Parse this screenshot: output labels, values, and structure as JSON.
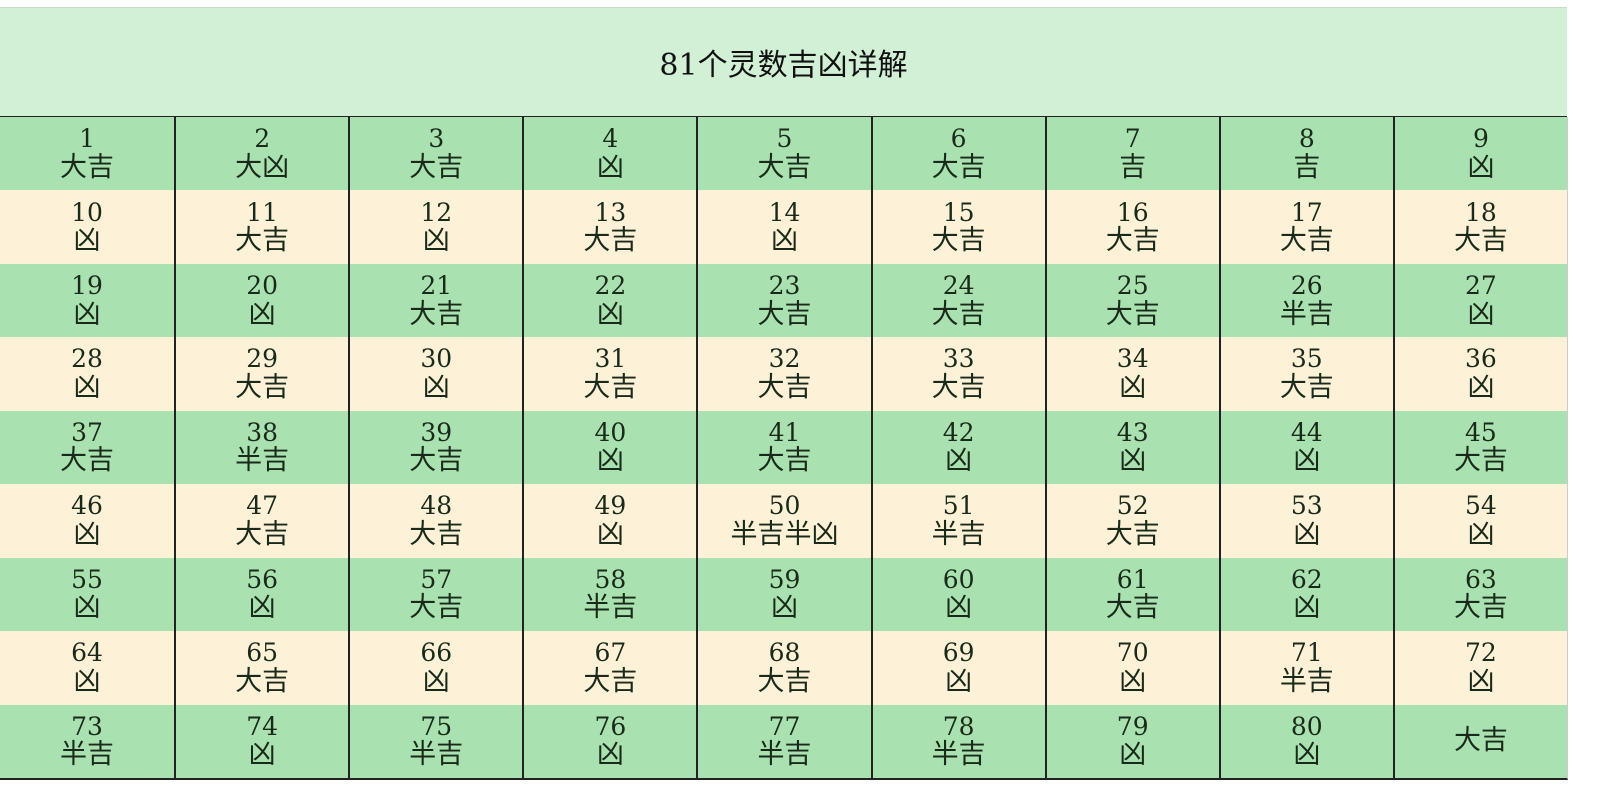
{
  "title": "81个灵数吉凶详解",
  "colors": {
    "title_bg": "#d2f0d6",
    "row_green": "#a9e2b0",
    "row_cream": "#fdf2d8"
  },
  "cells": [
    {
      "n": "1",
      "r": "大吉"
    },
    {
      "n": "2",
      "r": "大凶"
    },
    {
      "n": "3",
      "r": "大吉"
    },
    {
      "n": "4",
      "r": "凶"
    },
    {
      "n": "5",
      "r": "大吉"
    },
    {
      "n": "6",
      "r": "大吉"
    },
    {
      "n": "7",
      "r": "吉"
    },
    {
      "n": "8",
      "r": "吉"
    },
    {
      "n": "9",
      "r": "凶"
    },
    {
      "n": "10",
      "r": "凶"
    },
    {
      "n": "11",
      "r": "大吉"
    },
    {
      "n": "12",
      "r": "凶"
    },
    {
      "n": "13",
      "r": "大吉"
    },
    {
      "n": "14",
      "r": "凶"
    },
    {
      "n": "15",
      "r": "大吉"
    },
    {
      "n": "16",
      "r": "大吉"
    },
    {
      "n": "17",
      "r": "大吉"
    },
    {
      "n": "18",
      "r": "大吉"
    },
    {
      "n": "19",
      "r": "凶"
    },
    {
      "n": "20",
      "r": "凶"
    },
    {
      "n": "21",
      "r": "大吉"
    },
    {
      "n": "22",
      "r": "凶"
    },
    {
      "n": "23",
      "r": "大吉"
    },
    {
      "n": "24",
      "r": "大吉"
    },
    {
      "n": "25",
      "r": "大吉"
    },
    {
      "n": "26",
      "r": "半吉"
    },
    {
      "n": "27",
      "r": "凶"
    },
    {
      "n": "28",
      "r": "凶"
    },
    {
      "n": "29",
      "r": "大吉"
    },
    {
      "n": "30",
      "r": "凶"
    },
    {
      "n": "31",
      "r": "大吉"
    },
    {
      "n": "32",
      "r": "大吉"
    },
    {
      "n": "33",
      "r": "大吉"
    },
    {
      "n": "34",
      "r": "凶"
    },
    {
      "n": "35",
      "r": "大吉"
    },
    {
      "n": "36",
      "r": "凶"
    },
    {
      "n": "37",
      "r": "大吉"
    },
    {
      "n": "38",
      "r": "半吉"
    },
    {
      "n": "39",
      "r": "大吉"
    },
    {
      "n": "40",
      "r": "凶"
    },
    {
      "n": "41",
      "r": "大吉"
    },
    {
      "n": "42",
      "r": "凶"
    },
    {
      "n": "43",
      "r": "凶"
    },
    {
      "n": "44",
      "r": "凶"
    },
    {
      "n": "45",
      "r": "大吉"
    },
    {
      "n": "46",
      "r": "凶"
    },
    {
      "n": "47",
      "r": "大吉"
    },
    {
      "n": "48",
      "r": "大吉"
    },
    {
      "n": "49",
      "r": "凶"
    },
    {
      "n": "50",
      "r": "半吉半凶"
    },
    {
      "n": "51",
      "r": "半吉"
    },
    {
      "n": "52",
      "r": "大吉"
    },
    {
      "n": "53",
      "r": "凶"
    },
    {
      "n": "54",
      "r": "凶"
    },
    {
      "n": "55",
      "r": "凶"
    },
    {
      "n": "56",
      "r": "凶"
    },
    {
      "n": "57",
      "r": "大吉"
    },
    {
      "n": "58",
      "r": "半吉"
    },
    {
      "n": "59",
      "r": "凶"
    },
    {
      "n": "60",
      "r": "凶"
    },
    {
      "n": "61",
      "r": "大吉"
    },
    {
      "n": "62",
      "r": "凶"
    },
    {
      "n": "63",
      "r": "大吉"
    },
    {
      "n": "64",
      "r": "凶"
    },
    {
      "n": "65",
      "r": "大吉"
    },
    {
      "n": "66",
      "r": "凶"
    },
    {
      "n": "67",
      "r": "大吉"
    },
    {
      "n": "68",
      "r": "大吉"
    },
    {
      "n": "69",
      "r": "凶"
    },
    {
      "n": "70",
      "r": "凶"
    },
    {
      "n": "71",
      "r": "半吉"
    },
    {
      "n": "72",
      "r": "凶"
    },
    {
      "n": "73",
      "r": "半吉"
    },
    {
      "n": "74",
      "r": "凶"
    },
    {
      "n": "75",
      "r": "半吉"
    },
    {
      "n": "76",
      "r": "凶"
    },
    {
      "n": "77",
      "r": "半吉"
    },
    {
      "n": "78",
      "r": "半吉"
    },
    {
      "n": "79",
      "r": "凶"
    },
    {
      "n": "80",
      "r": "凶"
    },
    {
      "n": "",
      "r": "大吉"
    }
  ]
}
